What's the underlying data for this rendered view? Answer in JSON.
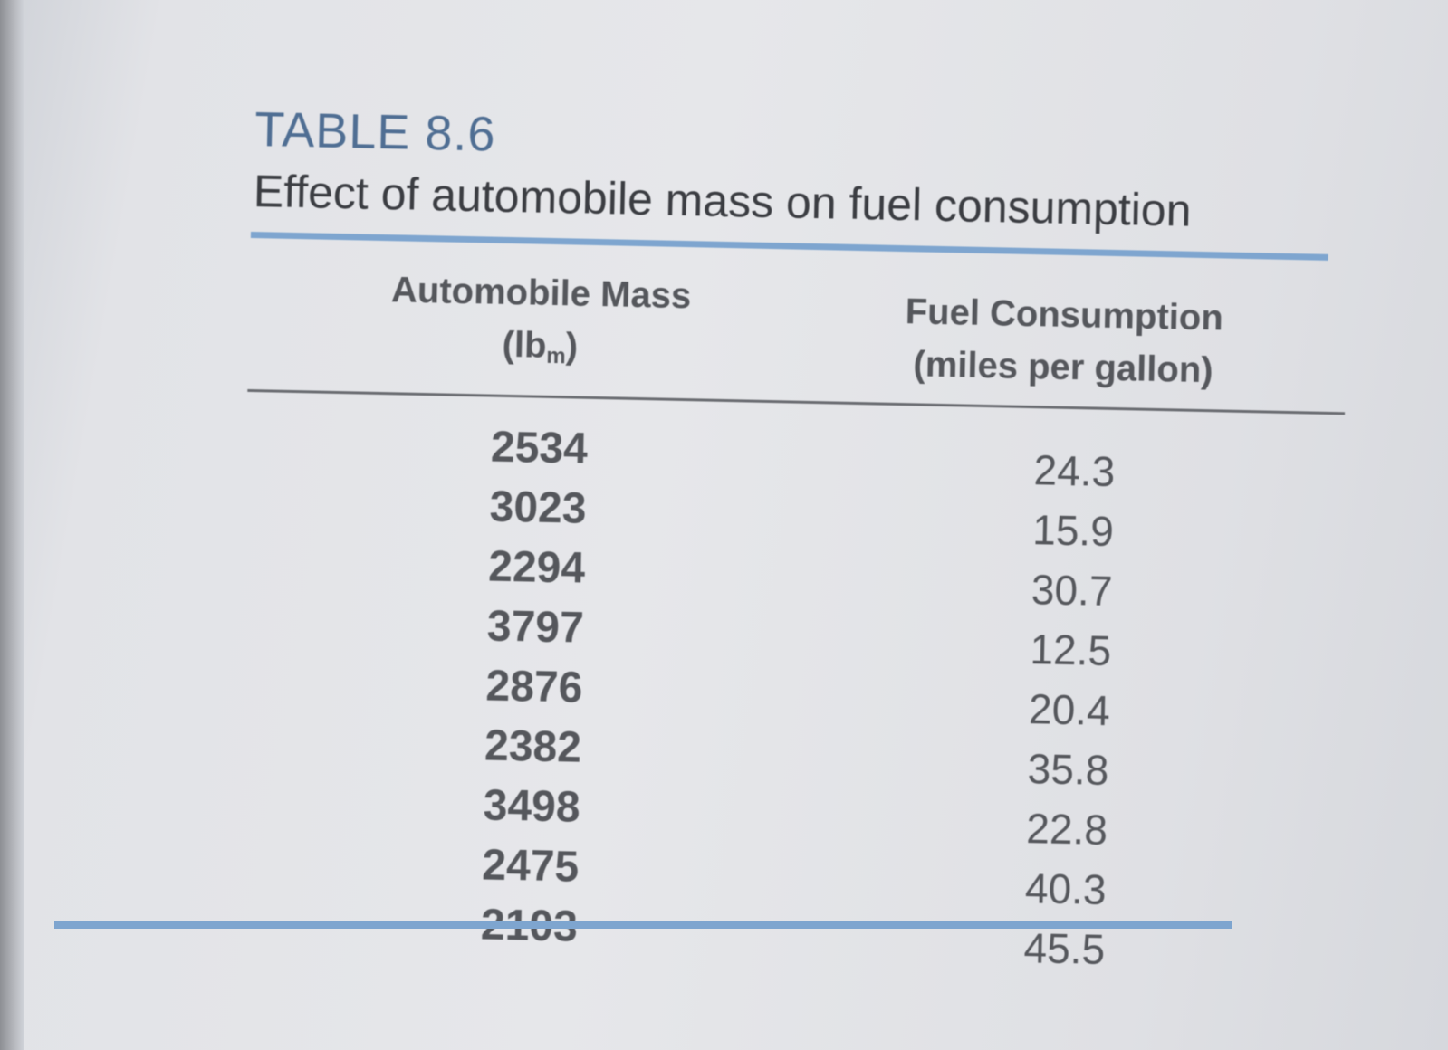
{
  "table": {
    "number": "TABLE 8.6",
    "caption": "Effect of automobile mass on fuel consumption",
    "columns": [
      {
        "name": "Automobile Mass",
        "unit_prefix": "(lb",
        "unit_sub": "m",
        "unit_suffix": ")"
      },
      {
        "name": "Fuel Consumption",
        "unit": "(miles per gallon)"
      }
    ],
    "rows": [
      {
        "mass": "2534",
        "fuel": "24.3"
      },
      {
        "mass": "3023",
        "fuel": "15.9"
      },
      {
        "mass": "2294",
        "fuel": "30.7"
      },
      {
        "mass": "3797",
        "fuel": "12.5"
      },
      {
        "mass": "2876",
        "fuel": "20.4"
      },
      {
        "mass": "2382",
        "fuel": "35.8"
      },
      {
        "mass": "3498",
        "fuel": "22.8"
      },
      {
        "mass": "2475",
        "fuel": "40.3"
      },
      {
        "mass": "2103",
        "fuel": "45.5"
      }
    ]
  },
  "colors": {
    "accent_rule": "#7ea5cf",
    "table_number": "#4f6e93",
    "text": "#55575c"
  }
}
